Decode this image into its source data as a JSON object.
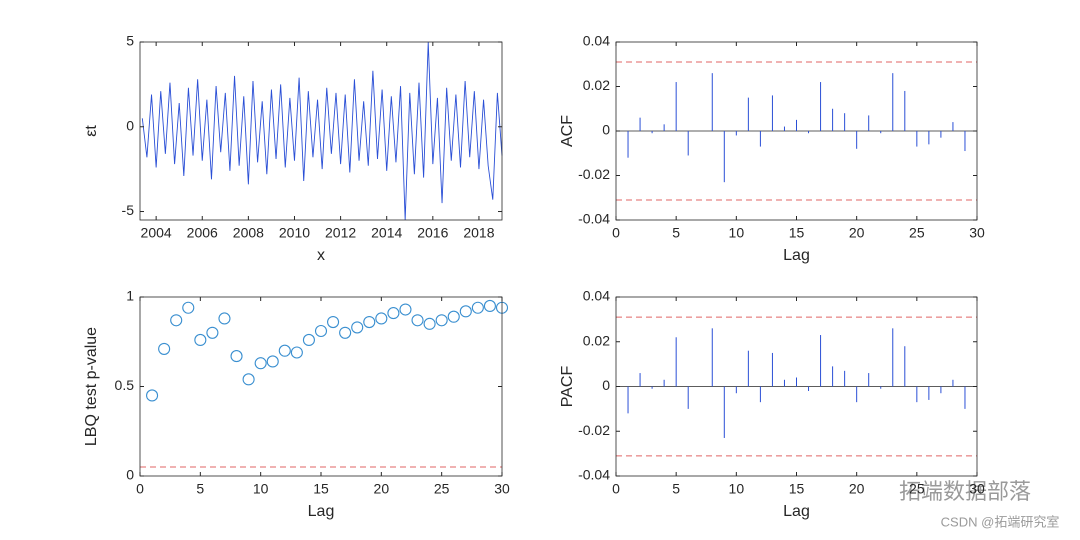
{
  "chart_data": [
    {
      "type": "line",
      "xlabel": "x",
      "ylabel": "εt",
      "x": [
        2003.4,
        2003.6,
        2003.8,
        2004.0,
        2004.2,
        2004.4,
        2004.6,
        2004.8,
        2005.0,
        2005.2,
        2005.4,
        2005.6,
        2005.8,
        2006.0,
        2006.2,
        2006.4,
        2006.6,
        2006.8,
        2007.0,
        2007.2,
        2007.4,
        2007.6,
        2007.8,
        2008.0,
        2008.2,
        2008.4,
        2008.6,
        2008.8,
        2009.0,
        2009.2,
        2009.4,
        2009.6,
        2009.8,
        2010.0,
        2010.2,
        2010.4,
        2010.6,
        2010.8,
        2011.0,
        2011.2,
        2011.4,
        2011.6,
        2011.8,
        2012.0,
        2012.2,
        2012.4,
        2012.6,
        2012.8,
        2013.0,
        2013.2,
        2013.4,
        2013.6,
        2013.8,
        2014.0,
        2014.2,
        2014.4,
        2014.6,
        2014.8,
        2015.0,
        2015.2,
        2015.4,
        2015.6,
        2015.8,
        2016.0,
        2016.2,
        2016.4,
        2016.6,
        2016.8,
        2017.0,
        2017.2,
        2017.4,
        2017.6,
        2017.8,
        2018.0,
        2018.2,
        2018.4,
        2018.6,
        2018.8,
        2019.0
      ],
      "series": [
        {
          "color": "#2a4fd6",
          "values": [
            0.5,
            -1.8,
            1.9,
            -2.4,
            2.1,
            -1.6,
            2.6,
            -2.2,
            1.4,
            -2.9,
            2.3,
            -1.7,
            2.8,
            -2.0,
            1.6,
            -3.1,
            2.4,
            -1.5,
            2.0,
            -2.6,
            3.0,
            -2.3,
            1.8,
            -3.4,
            2.7,
            -2.1,
            1.5,
            -2.8,
            2.2,
            -1.9,
            2.5,
            -2.4,
            1.7,
            -2.0,
            2.9,
            -3.2,
            2.1,
            -1.8,
            1.6,
            -2.5,
            2.3,
            -1.6,
            2.0,
            -2.2,
            1.9,
            -2.7,
            2.8,
            -2.0,
            1.5,
            -2.3,
            3.3,
            -1.9,
            2.2,
            -2.6,
            1.8,
            -2.1,
            2.4,
            -5.5,
            2.0,
            -2.8,
            2.6,
            -3.0,
            5.0,
            -2.2,
            1.7,
            -4.5,
            2.3,
            -2.0,
            1.9,
            -2.4,
            2.7,
            -1.8,
            2.1,
            -2.5,
            1.6,
            -2.3,
            -4.3,
            2.0,
            -1.7
          ]
        }
      ],
      "xlim": [
        2003.3,
        2019.0
      ],
      "xticks": [
        2004,
        2006,
        2008,
        2010,
        2012,
        2014,
        2016,
        2018
      ],
      "ylim": [
        -5.5,
        5
      ],
      "yticks": [
        -5,
        0,
        5
      ]
    },
    {
      "type": "stem",
      "xlabel": "Lag",
      "ylabel": "ACF",
      "x": [
        1,
        2,
        3,
        4,
        5,
        6,
        7,
        8,
        9,
        10,
        11,
        12,
        13,
        14,
        15,
        16,
        17,
        18,
        19,
        20,
        21,
        22,
        23,
        24,
        25,
        26,
        27,
        28,
        29
      ],
      "series": [
        {
          "color": "#2a4fd6",
          "values": [
            -0.012,
            0.006,
            -0.001,
            0.003,
            0.022,
            -0.011,
            0.0,
            0.026,
            -0.023,
            -0.002,
            0.015,
            -0.007,
            0.016,
            0.002,
            0.005,
            -0.001,
            0.022,
            0.01,
            0.008,
            -0.008,
            0.007,
            -0.001,
            0.026,
            0.018,
            -0.007,
            -0.006,
            -0.003,
            0.004,
            -0.009
          ]
        }
      ],
      "reference_lines": [
        0.031,
        -0.031
      ],
      "reference_color": "#e06666",
      "xlim": [
        0,
        30
      ],
      "xticks": [
        0,
        5,
        10,
        15,
        20,
        25,
        30
      ],
      "ylim": [
        -0.04,
        0.04
      ],
      "yticks": [
        -0.04,
        -0.02,
        0,
        0.02,
        0.04
      ]
    },
    {
      "type": "scatter",
      "xlabel": "Lag",
      "ylabel": "LBQ test p-value",
      "x": [
        1,
        2,
        3,
        4,
        5,
        6,
        7,
        8,
        9,
        10,
        11,
        12,
        13,
        14,
        15,
        16,
        17,
        18,
        19,
        20,
        21,
        22,
        23,
        24,
        25,
        26,
        27,
        28,
        29,
        30
      ],
      "series": [
        {
          "color": "#3a8fd0",
          "values": [
            0.45,
            0.71,
            0.87,
            0.94,
            0.76,
            0.8,
            0.88,
            0.67,
            0.54,
            0.63,
            0.64,
            0.7,
            0.69,
            0.76,
            0.81,
            0.86,
            0.8,
            0.83,
            0.86,
            0.88,
            0.91,
            0.93,
            0.87,
            0.85,
            0.87,
            0.89,
            0.92,
            0.94,
            0.95,
            0.94
          ]
        }
      ],
      "reference_lines": [
        0.05
      ],
      "reference_color": "#e06666",
      "xlim": [
        0,
        30
      ],
      "xticks": [
        0,
        5,
        10,
        15,
        20,
        25,
        30
      ],
      "ylim": [
        0,
        1
      ],
      "yticks": [
        0,
        0.5,
        1
      ]
    },
    {
      "type": "stem",
      "xlabel": "Lag",
      "ylabel": "PACF",
      "x": [
        1,
        2,
        3,
        4,
        5,
        6,
        7,
        8,
        9,
        10,
        11,
        12,
        13,
        14,
        15,
        16,
        17,
        18,
        19,
        20,
        21,
        22,
        23,
        24,
        25,
        26,
        27,
        28,
        29
      ],
      "series": [
        {
          "color": "#2a4fd6",
          "values": [
            -0.012,
            0.006,
            -0.001,
            0.003,
            0.022,
            -0.01,
            0.0,
            0.026,
            -0.023,
            -0.003,
            0.016,
            -0.007,
            0.015,
            0.003,
            0.004,
            -0.002,
            0.023,
            0.009,
            0.007,
            -0.007,
            0.006,
            -0.001,
            0.026,
            0.018,
            -0.007,
            -0.006,
            -0.003,
            0.003,
            -0.01
          ]
        }
      ],
      "reference_lines": [
        0.031,
        -0.031
      ],
      "reference_color": "#e06666",
      "xlim": [
        0,
        30
      ],
      "xticks": [
        0,
        5,
        10,
        15,
        20,
        25,
        30
      ],
      "ylim": [
        -0.04,
        0.04
      ],
      "yticks": [
        -0.04,
        -0.02,
        0,
        0.02,
        0.04
      ]
    }
  ],
  "watermark": "拓端数据部落",
  "credit": "CSDN @拓端研究室"
}
